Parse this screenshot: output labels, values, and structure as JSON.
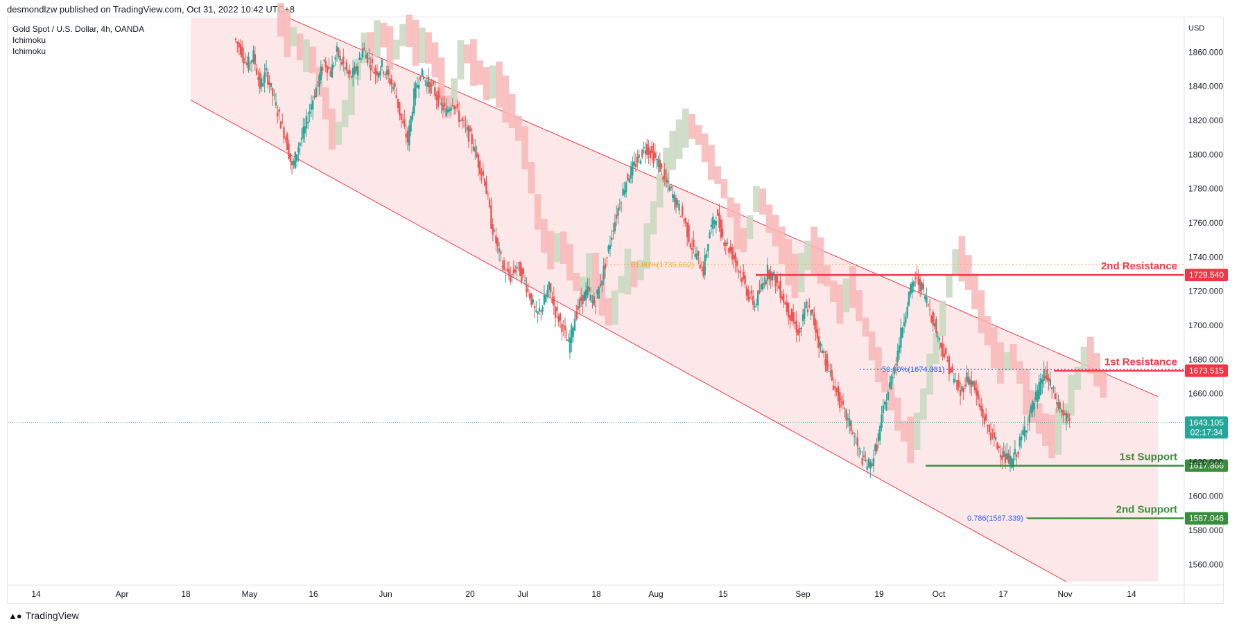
{
  "header": {
    "published": "desmondlzw published on TradingView.com, Oct 31, 2022 10:42 UTC+8"
  },
  "info": {
    "symbol": "Gold Spot / U.S. Dollar, 4h, OANDA",
    "indicators": [
      "Ichimoku",
      "Ichimoku"
    ]
  },
  "footer": {
    "brand": "TradingView",
    "logo": "tradingview-logo-icon"
  },
  "colors": {
    "bull": "#26a69a",
    "bear": "#ef5350",
    "channel_fill": "#fde8e9",
    "channel_line": "#f23645",
    "cloud_bear": "#f8b6b6",
    "cloud_bull": "#c8d8c0",
    "resistance": "#f23645",
    "support": "#388e3c",
    "fib_orange": "#f5a623",
    "fib_blue": "#2962ff",
    "price_tag": "#26a69a",
    "axis_text": "#131722"
  },
  "chart_data": {
    "type": "candlestick",
    "currency": "USD",
    "ylim": [
      1550,
      1880
    ],
    "y_ticks": [
      1560,
      1580,
      1600,
      1620,
      1640,
      1660,
      1680,
      1700,
      1720,
      1740,
      1760,
      1780,
      1800,
      1820,
      1840,
      1860
    ],
    "x_ticks": [
      "14",
      "Apr",
      "18",
      "May",
      "16",
      "Jun",
      "20",
      "Jul",
      "18",
      "Aug",
      "15",
      "Sep",
      "19",
      "Oct",
      "17",
      "Nov",
      "14"
    ],
    "current_price": {
      "value": "1643.105",
      "countdown": "02:17:34"
    },
    "levels": [
      {
        "label": "2nd Resistance",
        "price": "1729.540",
        "value": 1729.54,
        "kind": "resistance"
      },
      {
        "label": "1st Resistance",
        "price": "1673.515",
        "value": 1673.515,
        "kind": "resistance"
      },
      {
        "label": "1st Support",
        "price": "1617.866",
        "value": 1617.866,
        "kind": "support"
      },
      {
        "label": "2nd Support",
        "price": "1587.046",
        "value": 1587.046,
        "kind": "support"
      }
    ],
    "fibonacci": [
      {
        "label": "61.80%(1735.662)",
        "value": 1735.662,
        "color": "orange"
      },
      {
        "label": "50.00%(1674.381)",
        "value": 1674.381,
        "color": "blue"
      },
      {
        "label": "0.786(1587.339)",
        "value": 1587.339,
        "color": "blue"
      }
    ],
    "channel": {
      "upper": [
        [
          0.0,
          1905
        ],
        [
          1.0,
          1658
        ]
      ],
      "lower": [
        [
          0.0,
          1832
        ],
        [
          1.0,
          1520
        ]
      ]
    },
    "path": [
      1868,
      1862,
      1852,
      1858,
      1840,
      1848,
      1835,
      1822,
      1810,
      1792,
      1805,
      1815,
      1830,
      1842,
      1855,
      1848,
      1860,
      1852,
      1845,
      1850,
      1862,
      1855,
      1848,
      1852,
      1845,
      1838,
      1820,
      1808,
      1835,
      1848,
      1842,
      1838,
      1830,
      1825,
      1832,
      1822,
      1815,
      1808,
      1795,
      1785,
      1760,
      1745,
      1732,
      1728,
      1735,
      1728,
      1718,
      1705,
      1712,
      1722,
      1708,
      1700,
      1688,
      1705,
      1715,
      1720,
      1712,
      1725,
      1740,
      1758,
      1772,
      1785,
      1792,
      1798,
      1805,
      1800,
      1795,
      1785,
      1778,
      1770,
      1762,
      1748,
      1740,
      1732,
      1755,
      1765,
      1752,
      1745,
      1738,
      1728,
      1718,
      1712,
      1722,
      1732,
      1728,
      1720,
      1710,
      1702,
      1695,
      1712,
      1705,
      1690,
      1680,
      1668,
      1658,
      1648,
      1640,
      1628,
      1620,
      1618,
      1630,
      1650,
      1665,
      1680,
      1700,
      1718,
      1728,
      1722,
      1712,
      1700,
      1688,
      1678,
      1668,
      1660,
      1670,
      1665,
      1652,
      1642,
      1635,
      1628,
      1622,
      1620,
      1628,
      1640,
      1650,
      1660,
      1672,
      1665,
      1655,
      1648,
      1643
    ]
  }
}
